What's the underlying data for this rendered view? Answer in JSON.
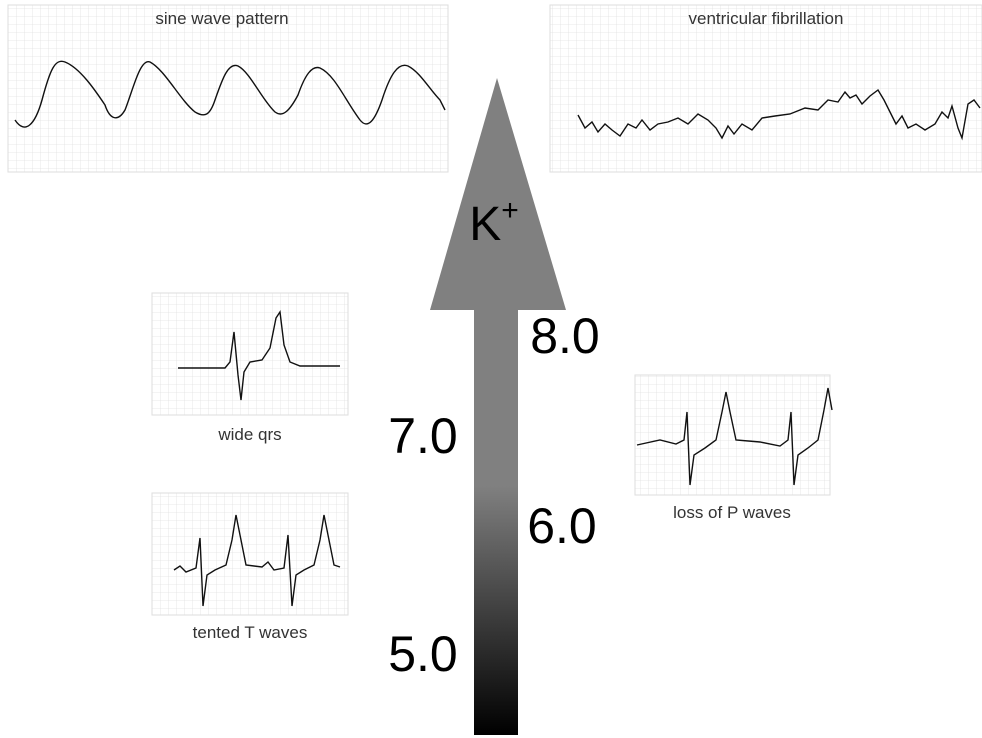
{
  "arrow": {
    "label": "K",
    "superscript": "+"
  },
  "levels": [
    "5.0",
    "6.0",
    "7.0",
    "8.0"
  ],
  "panels": [
    {
      "label": "sine wave pattern"
    },
    {
      "label": "ventricular fibrillation"
    },
    {
      "label": "wide qrs"
    },
    {
      "label": "tented T waves"
    },
    {
      "label": "loss of P waves"
    }
  ]
}
